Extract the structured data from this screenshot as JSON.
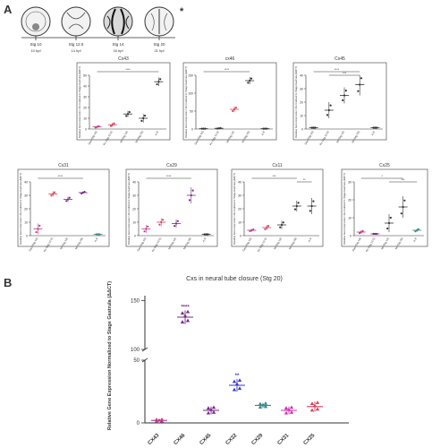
{
  "panels": {
    "a_label": "A",
    "b_label": "B"
  },
  "stages": {
    "labels": [
      "Stg 10",
      "Stg 12.5",
      "Stg 14",
      "Stg 20"
    ],
    "times": [
      "10 hpf",
      "14 hpf",
      "16 hpf",
      "21 hpf"
    ],
    "asterisk": "*"
  },
  "small_chart_ylabel": "Relative Gene Expression Normalized to Stage Gastrula (ΔΔCT)",
  "small_chart_xlabels": [
    "Gas (Stg 10)",
    "Pn (Stg 12.5)",
    "Nf (Stg 14)",
    "Nt (Stg 20)",
    "A.R"
  ],
  "colors": {
    "pink": "#c03a8a",
    "red": "#d8405a",
    "purple": "#7a2a8a",
    "blue": "#3a3ad0",
    "teal": "#3a8a8a",
    "magenta": "#d030b0",
    "black": "#333333"
  },
  "chart_data": [
    {
      "type": "scatter",
      "title": "Cx43",
      "ylim": [
        0,
        50
      ],
      "yticks": [
        0,
        10,
        20,
        30,
        40,
        50
      ],
      "values": [
        2,
        4,
        14,
        10,
        44
      ],
      "spread": [
        1,
        2,
        3,
        4,
        4
      ],
      "colors": [
        "pink",
        "red",
        "black",
        "black",
        "black"
      ]
    },
    {
      "type": "scatter",
      "title": "cx46",
      "ylim": [
        0,
        150
      ],
      "yticks": [
        0,
        50,
        100,
        150
      ],
      "values": [
        1,
        2,
        55,
        135,
        1
      ],
      "spread": [
        0,
        1,
        8,
        10,
        0
      ],
      "colors": [
        "black",
        "black",
        "red",
        "black",
        "black"
      ]
    },
    {
      "type": "scatter",
      "title": "Cx45",
      "ylim": [
        0,
        40
      ],
      "yticks": [
        0,
        10,
        20,
        30,
        40
      ],
      "values": [
        1,
        14,
        25,
        33,
        1
      ],
      "spread": [
        0,
        6,
        6,
        8,
        0
      ],
      "colors": [
        "black",
        "black",
        "black",
        "black",
        "black"
      ]
    },
    {
      "type": "scatter",
      "title": "Cx31",
      "ylim": [
        0,
        40
      ],
      "yticks": [
        0,
        10,
        20,
        30,
        40
      ],
      "values": [
        5,
        31,
        27,
        32,
        1
      ],
      "spread": [
        4,
        2,
        2,
        1,
        0
      ],
      "colors": [
        "pink",
        "red",
        "purple",
        "purple",
        "teal"
      ]
    },
    {
      "type": "scatter",
      "title": "Cx29",
      "ylim": [
        0,
        40
      ],
      "yticks": [
        0,
        10,
        20,
        30,
        40
      ],
      "values": [
        5,
        10,
        9,
        30,
        1
      ],
      "spread": [
        3,
        3,
        3,
        6,
        0
      ],
      "colors": [
        "pink",
        "red",
        "purple",
        "purple",
        "black"
      ]
    },
    {
      "type": "scatter",
      "title": "Cx11",
      "ylim": [
        0,
        40
      ],
      "yticks": [
        0,
        10,
        20,
        30,
        40
      ],
      "values": [
        4,
        6,
        8,
        22,
        22
      ],
      "spread": [
        1,
        2,
        3,
        4,
        6
      ],
      "colors": [
        "pink",
        "red",
        "black",
        "black",
        "black"
      ]
    },
    {
      "type": "scatter",
      "title": "Cx25",
      "ylim": [
        0,
        30
      ],
      "yticks": [
        0,
        10,
        20,
        30
      ],
      "values": [
        2,
        1,
        7,
        16,
        3
      ],
      "spread": [
        1,
        0,
        5,
        6,
        1
      ],
      "colors": [
        "pink",
        "purple",
        "black",
        "black",
        "teal"
      ]
    }
  ],
  "main_chart": {
    "type": "scatter",
    "title": "Cxs in neural tube closure (Stg 20)",
    "ylabel": "Relative Gene Expression Normalized to Stage Gastrula (ΔΔCT)",
    "categories": [
      "CX43",
      "CX46",
      "CX45",
      "CX32",
      "CX29",
      "CX31",
      "CX25"
    ],
    "values": [
      2,
      133,
      10,
      30,
      14,
      10,
      13
    ],
    "spread": [
      1,
      7,
      3,
      5,
      2,
      3,
      4
    ],
    "colors": [
      "pink",
      "purple",
      "purple",
      "blue",
      "teal",
      "magenta",
      "red"
    ],
    "yticks": [
      0,
      50,
      100,
      150
    ],
    "ylim": [
      0,
      155
    ],
    "star_top": "****",
    "star_cx32": "**"
  }
}
